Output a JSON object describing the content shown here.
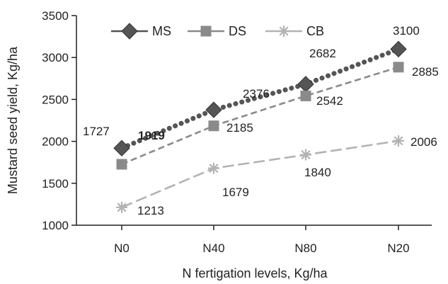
{
  "chart_data": {
    "type": "line",
    "categories": [
      "N0",
      "N40",
      "N80",
      "N20"
    ],
    "xlabel": "N fertigation levels, Kg/ha",
    "ylabel": "Mustard seed yield, Kg/ha",
    "ylim": [
      1000,
      3500
    ],
    "yticks": [
      1000,
      1500,
      2000,
      2500,
      3000,
      3500
    ],
    "grid": false,
    "legend_position": "top",
    "series": [
      {
        "name": "MS",
        "values": [
          1919,
          2376,
          2682,
          3100
        ],
        "labels": [
          "1919",
          "2376",
          "2682",
          "3100"
        ],
        "color": "#555555",
        "line_style": "dotted",
        "marker": "diamond"
      },
      {
        "name": "DS",
        "values": [
          1727,
          2185,
          2542,
          2885
        ],
        "labels": [
          "1727",
          "2185",
          "2542",
          "2885"
        ],
        "color": "#8a8a8a",
        "line_style": "dashed",
        "marker": "square"
      },
      {
        "name": "CB",
        "values": [
          1213,
          1679,
          1840,
          2006
        ],
        "labels": [
          "1213",
          "1679",
          "1840",
          "2006"
        ],
        "color": "#b3b3b3",
        "line_style": "long-dashed",
        "marker": "asterisk"
      }
    ]
  }
}
